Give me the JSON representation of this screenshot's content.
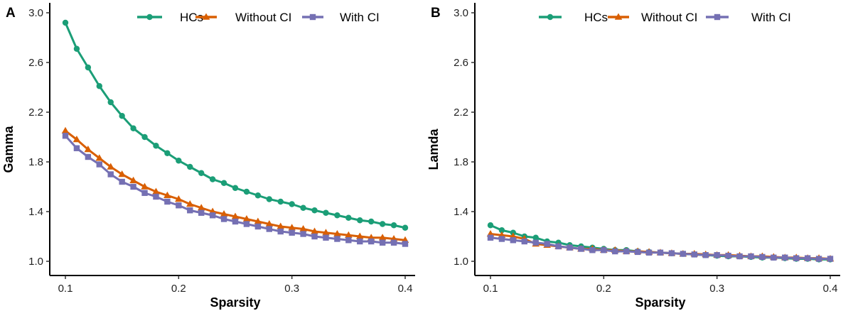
{
  "chart_data": [
    {
      "panel_label": "A",
      "type": "line",
      "xlabel": "Sparsity",
      "ylabel": "Gamma",
      "xlim": [
        0.1,
        0.4
      ],
      "ylim": [
        1.0,
        3.0
      ],
      "xticks": [
        "0.1",
        "0.2",
        "0.3",
        "0.4"
      ],
      "yticks": [
        "1.0",
        "1.4",
        "1.8",
        "2.2",
        "2.6",
        "3.0"
      ],
      "grid": false,
      "legend": "top",
      "x": [
        0.1,
        0.11,
        0.12,
        0.13,
        0.14,
        0.15,
        0.16,
        0.17,
        0.18,
        0.19,
        0.2,
        0.21,
        0.22,
        0.23,
        0.24,
        0.25,
        0.26,
        0.27,
        0.28,
        0.29,
        0.3,
        0.31,
        0.32,
        0.33,
        0.34,
        0.35,
        0.36,
        0.37,
        0.38,
        0.39,
        0.4
      ],
      "series": [
        {
          "name": "HCs",
          "color": "#1b9e77",
          "marker": "circle",
          "values": [
            2.92,
            2.71,
            2.56,
            2.41,
            2.28,
            2.17,
            2.07,
            2.0,
            1.93,
            1.87,
            1.81,
            1.76,
            1.71,
            1.66,
            1.63,
            1.59,
            1.56,
            1.53,
            1.5,
            1.48,
            1.46,
            1.43,
            1.41,
            1.39,
            1.37,
            1.35,
            1.33,
            1.32,
            1.3,
            1.29,
            1.27
          ]
        },
        {
          "name": "Without CI",
          "color": "#d95f02",
          "marker": "triangle",
          "values": [
            2.05,
            1.98,
            1.9,
            1.83,
            1.76,
            1.7,
            1.65,
            1.6,
            1.56,
            1.53,
            1.5,
            1.46,
            1.43,
            1.4,
            1.38,
            1.36,
            1.34,
            1.32,
            1.3,
            1.28,
            1.27,
            1.26,
            1.24,
            1.23,
            1.22,
            1.21,
            1.2,
            1.19,
            1.19,
            1.18,
            1.17
          ]
        },
        {
          "name": "With CI",
          "color": "#7570b3",
          "marker": "square",
          "values": [
            2.01,
            1.91,
            1.84,
            1.78,
            1.7,
            1.64,
            1.6,
            1.55,
            1.52,
            1.48,
            1.45,
            1.41,
            1.39,
            1.37,
            1.34,
            1.32,
            1.3,
            1.28,
            1.26,
            1.24,
            1.23,
            1.22,
            1.2,
            1.19,
            1.18,
            1.17,
            1.16,
            1.16,
            1.15,
            1.15,
            1.14
          ]
        }
      ]
    },
    {
      "panel_label": "B",
      "type": "line",
      "xlabel": "Sparsity",
      "ylabel": "Lamda",
      "xlim": [
        0.1,
        0.4
      ],
      "ylim": [
        1.0,
        3.0
      ],
      "xticks": [
        "0.1",
        "0.2",
        "0.3",
        "0.4"
      ],
      "yticks": [
        "1.0",
        "1.4",
        "1.8",
        "2.2",
        "2.6",
        "3.0"
      ],
      "grid": false,
      "legend": "top",
      "x": [
        0.1,
        0.11,
        0.12,
        0.13,
        0.14,
        0.15,
        0.16,
        0.17,
        0.18,
        0.19,
        0.2,
        0.21,
        0.22,
        0.23,
        0.24,
        0.25,
        0.26,
        0.27,
        0.28,
        0.29,
        0.3,
        0.31,
        0.32,
        0.33,
        0.34,
        0.35,
        0.36,
        0.37,
        0.38,
        0.39,
        0.4
      ],
      "series": [
        {
          "name": "HCs",
          "color": "#1b9e77",
          "marker": "circle",
          "values": [
            1.29,
            1.25,
            1.23,
            1.2,
            1.19,
            1.16,
            1.15,
            1.13,
            1.12,
            1.11,
            1.1,
            1.09,
            1.09,
            1.08,
            1.075,
            1.07,
            1.065,
            1.06,
            1.055,
            1.05,
            1.045,
            1.04,
            1.04,
            1.035,
            1.03,
            1.03,
            1.025,
            1.02,
            1.02,
            1.015,
            1.015
          ]
        },
        {
          "name": "Without CI",
          "color": "#d95f02",
          "marker": "triangle",
          "values": [
            1.22,
            1.21,
            1.2,
            1.18,
            1.14,
            1.13,
            1.12,
            1.11,
            1.1,
            1.1,
            1.09,
            1.09,
            1.08,
            1.08,
            1.075,
            1.07,
            1.065,
            1.06,
            1.06,
            1.055,
            1.05,
            1.05,
            1.045,
            1.04,
            1.04,
            1.035,
            1.03,
            1.03,
            1.025,
            1.025,
            1.02
          ]
        },
        {
          "name": "With CI",
          "color": "#7570b3",
          "marker": "square",
          "values": [
            1.19,
            1.18,
            1.17,
            1.16,
            1.15,
            1.14,
            1.12,
            1.11,
            1.1,
            1.09,
            1.09,
            1.08,
            1.08,
            1.075,
            1.07,
            1.07,
            1.065,
            1.06,
            1.055,
            1.05,
            1.05,
            1.045,
            1.04,
            1.04,
            1.035,
            1.03,
            1.03,
            1.025,
            1.025,
            1.02,
            1.02
          ]
        }
      ]
    }
  ]
}
